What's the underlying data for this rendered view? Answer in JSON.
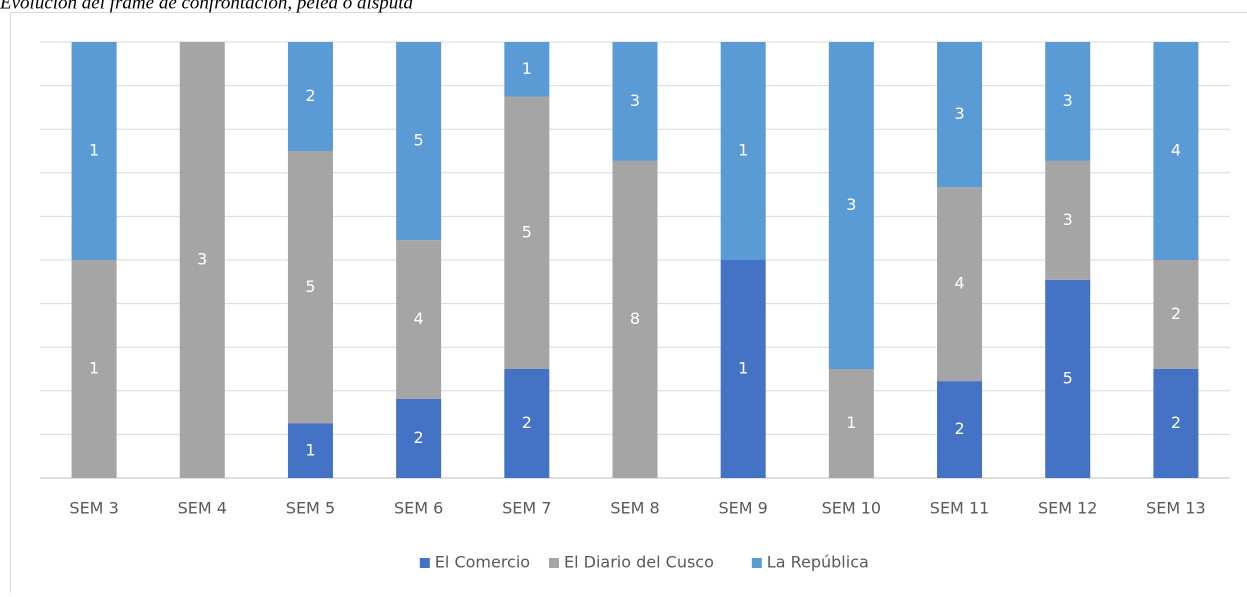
{
  "chart_data": {
    "type": "bar",
    "stacked": "percent",
    "title": "Evolución del frame de confrontación, pelea o disputa",
    "categories": [
      "SEM 3",
      "SEM 4",
      "SEM 5",
      "SEM 6",
      "SEM 7",
      "SEM 8",
      "SEM 9",
      "SEM 10",
      "SEM 11",
      "SEM 12",
      "SEM 13"
    ],
    "series": [
      {
        "name": "El Comercio",
        "color": "#4472c4",
        "values": [
          null,
          null,
          1,
          2,
          2,
          null,
          1,
          null,
          2,
          5,
          2
        ]
      },
      {
        "name": "El Diario del Cusco",
        "color": "#a5a5a5",
        "values": [
          1,
          3,
          5,
          4,
          5,
          8,
          null,
          1,
          4,
          3,
          2
        ]
      },
      {
        "name": "La República",
        "color": "#5b9bd5",
        "values": [
          1,
          null,
          2,
          5,
          1,
          3,
          1,
          3,
          3,
          3,
          4
        ]
      }
    ],
    "ylim": [
      0,
      100
    ],
    "yticks": [
      0,
      10,
      20,
      30,
      40,
      50,
      60,
      70,
      80,
      90,
      100
    ],
    "grid": true,
    "legend": "bottom"
  }
}
